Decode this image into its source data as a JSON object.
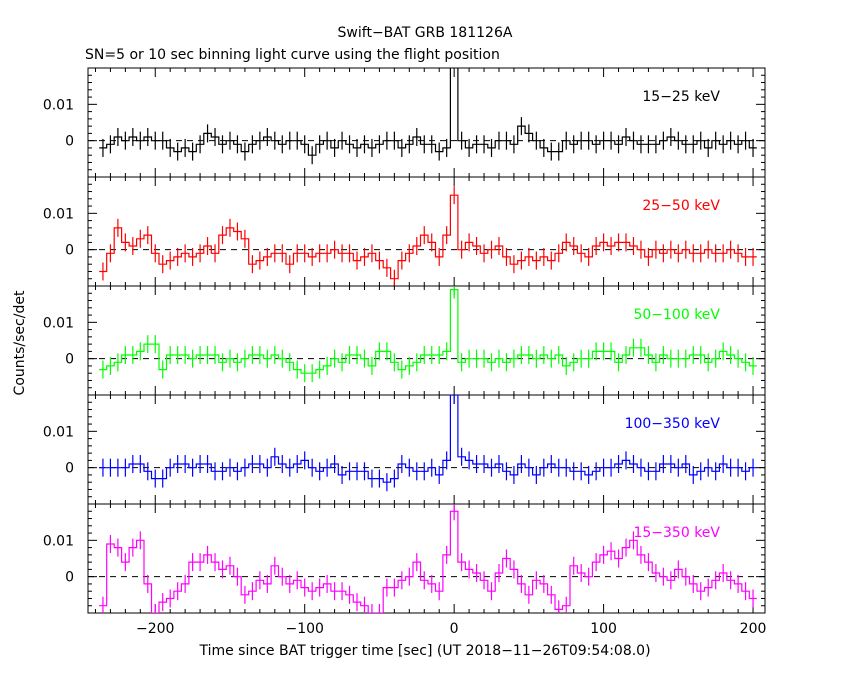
{
  "chart_data": {
    "type": "line",
    "title": "Swift−BAT GRB 181126A",
    "subtitle": "SN=5 or 10 sec binning light curve using the flight position",
    "xlabel": "Time since BAT trigger time [sec] (UT 2018−11−26T09:54:08.0)",
    "ylabel": "Counts/sec/det",
    "xlim": [
      -245,
      208
    ],
    "x_ticks": [
      -200,
      -100,
      0,
      100,
      200
    ],
    "x_tick_labels": [
      "−200",
      "−100",
      "0",
      "100",
      "200"
    ],
    "y_ticks": [
      0,
      0.01
    ],
    "y_tick_labels": [
      "0",
      "0.01"
    ],
    "ylim": [
      -0.01,
      0.02
    ],
    "grid": false,
    "zero_line": "dashed",
    "x": [
      -235,
      -230,
      -225,
      -220,
      -215,
      -210,
      -205,
      -200,
      -195,
      -190,
      -185,
      -180,
      -175,
      -170,
      -165,
      -160,
      -155,
      -150,
      -145,
      -140,
      -135,
      -130,
      -125,
      -120,
      -115,
      -110,
      -105,
      -100,
      -95,
      -90,
      -85,
      -80,
      -75,
      -70,
      -65,
      -60,
      -55,
      -50,
      -45,
      -40,
      -35,
      -30,
      -25,
      -20,
      -15,
      -10,
      -5,
      0,
      5,
      10,
      15,
      20,
      25,
      30,
      35,
      40,
      45,
      50,
      55,
      60,
      65,
      70,
      75,
      80,
      85,
      90,
      95,
      100,
      105,
      110,
      115,
      120,
      125,
      130,
      135,
      140,
      145,
      150,
      155,
      160,
      165,
      170,
      175,
      180,
      185,
      190,
      195,
      200
    ],
    "series": [
      {
        "name": "15−25 keV",
        "color": "#000000",
        "values": [
          -0.002,
          -0.001,
          0.001,
          0.0,
          0.001,
          0.0,
          0.001,
          0.0,
          0.0,
          -0.002,
          -0.003,
          -0.002,
          -0.003,
          -0.001,
          0.002,
          0.001,
          -0.001,
          0.0,
          -0.001,
          -0.003,
          -0.001,
          0.0,
          0.001,
          0.0,
          -0.001,
          0.0,
          0.0,
          -0.001,
          -0.004,
          -0.001,
          0.0,
          -0.002,
          0.0,
          -0.001,
          -0.002,
          -0.001,
          -0.002,
          -0.001,
          0.0,
          0.0,
          -0.002,
          -0.001,
          0.001,
          -0.001,
          -0.001,
          -0.003,
          -0.002,
          0.03,
          0.0,
          -0.002,
          -0.001,
          -0.001,
          -0.002,
          0.0,
          0.0,
          -0.001,
          0.004,
          0.002,
          0.0,
          -0.002,
          -0.003,
          -0.003,
          0.0,
          -0.001,
          0.0,
          0.0,
          -0.001,
          0.0,
          0.0,
          -0.001,
          0.001,
          0.0,
          -0.001,
          -0.001,
          -0.001,
          0.0,
          0.001,
          0.0,
          -0.001,
          -0.001,
          0.0,
          -0.002,
          0.0,
          -0.001,
          0.0,
          -0.001,
          0.0,
          -0.002
        ]
      },
      {
        "name": "25−50 keV",
        "color": "#ff0000",
        "values": [
          -0.006,
          -0.001,
          0.006,
          0.002,
          0.001,
          0.003,
          0.004,
          -0.001,
          -0.004,
          -0.003,
          -0.002,
          -0.001,
          -0.002,
          -0.001,
          0.001,
          -0.001,
          0.004,
          0.006,
          0.005,
          0.003,
          -0.004,
          -0.003,
          -0.002,
          -0.001,
          -0.001,
          -0.004,
          -0.001,
          -0.001,
          -0.002,
          -0.001,
          -0.001,
          0.0,
          -0.001,
          -0.001,
          -0.003,
          -0.002,
          -0.001,
          -0.003,
          -0.005,
          -0.008,
          -0.003,
          -0.001,
          0.001,
          0.004,
          0.002,
          -0.002,
          0.004,
          0.015,
          0.0,
          0.002,
          0.001,
          -0.001,
          0.0,
          0.001,
          -0.002,
          -0.004,
          -0.003,
          -0.002,
          -0.003,
          -0.002,
          -0.003,
          -0.001,
          0.002,
          0.001,
          -0.001,
          -0.002,
          0.001,
          0.002,
          0.001,
          0.002,
          0.002,
          0.001,
          0.0,
          -0.002,
          0.0,
          -0.001,
          0.0,
          -0.001,
          0.0,
          -0.001,
          -0.001,
          0.0,
          -0.001,
          -0.001,
          0.0,
          -0.001,
          -0.002,
          -0.002
        ]
      },
      {
        "name": "50−100 keV",
        "color": "#00ff00",
        "values": [
          -0.003,
          -0.002,
          -0.001,
          0.001,
          0.001,
          0.002,
          0.004,
          0.004,
          -0.003,
          0.001,
          0.001,
          0.001,
          0.0,
          0.001,
          0.001,
          0.001,
          -0.001,
          0.0,
          -0.001,
          0.0,
          0.001,
          0.001,
          0.0,
          0.001,
          0.0,
          -0.001,
          -0.003,
          -0.004,
          -0.004,
          -0.003,
          -0.002,
          0.0,
          -0.001,
          0.001,
          0.001,
          0.0,
          -0.002,
          0.002,
          0.002,
          -0.001,
          -0.003,
          -0.002,
          -0.001,
          0.001,
          0.001,
          0.001,
          0.002,
          0.019,
          -0.001,
          0.0,
          0.0,
          0.0,
          -0.001,
          0.0,
          -0.001,
          0.0,
          0.001,
          0.001,
          0.0,
          0.001,
          0.0,
          0.001,
          -0.002,
          -0.001,
          0.0,
          0.0,
          0.002,
          0.002,
          0.002,
          -0.001,
          0.001,
          0.003,
          0.003,
          0.001,
          -0.001,
          0.001,
          0.0,
          0.0,
          0.0,
          0.001,
          0.001,
          -0.001,
          0.0,
          0.002,
          0.001,
          0.0,
          -0.001,
          -0.002
        ]
      },
      {
        "name": "100−350 keV",
        "color": "#0000ff",
        "values": [
          0.0,
          0.0,
          0.0,
          0.0,
          0.001,
          0.001,
          -0.001,
          -0.003,
          -0.003,
          0.0,
          0.001,
          0.001,
          0.0,
          0.001,
          0.001,
          -0.001,
          -0.001,
          0.0,
          -0.001,
          0.0,
          0.001,
          0.001,
          0.0,
          0.003,
          0.001,
          0.0,
          0.001,
          0.002,
          0.0,
          -0.001,
          0.0,
          0.001,
          -0.002,
          -0.001,
          -0.001,
          -0.001,
          -0.003,
          -0.003,
          -0.004,
          -0.003,
          0.001,
          0.0,
          -0.001,
          -0.001,
          0.0,
          -0.002,
          0.002,
          0.02,
          0.003,
          0.002,
          0.001,
          0.001,
          0.0,
          0.001,
          -0.001,
          -0.002,
          0.001,
          0.0,
          -0.002,
          0.0,
          0.001,
          0.0,
          0.0,
          -0.001,
          -0.001,
          -0.002,
          -0.001,
          0.0,
          0.0,
          0.001,
          0.002,
          0.001,
          0.0,
          -0.001,
          -0.001,
          0.001,
          0.001,
          0.0,
          0.001,
          -0.002,
          -0.001,
          0.0,
          -0.001,
          0.001,
          0.0,
          0.0,
          -0.001,
          0.0
        ]
      },
      {
        "name": "15−350 keV",
        "color": "#ff00ff",
        "values": [
          -0.008,
          0.009,
          0.008,
          0.004,
          0.008,
          0.01,
          -0.002,
          -0.01,
          -0.007,
          -0.006,
          -0.004,
          -0.002,
          0.004,
          0.004,
          0.006,
          0.004,
          0.002,
          0.003,
          0.0,
          -0.005,
          -0.004,
          -0.001,
          -0.002,
          0.003,
          0.0,
          -0.002,
          -0.001,
          -0.003,
          -0.004,
          -0.003,
          -0.002,
          -0.004,
          -0.004,
          -0.005,
          -0.007,
          -0.008,
          -0.01,
          -0.01,
          -0.003,
          -0.003,
          -0.001,
          0.0,
          0.004,
          -0.001,
          -0.002,
          -0.004,
          0.006,
          0.018,
          0.004,
          0.002,
          0.001,
          -0.001,
          -0.004,
          0.001,
          0.005,
          0.002,
          -0.002,
          -0.005,
          -0.001,
          -0.002,
          -0.005,
          -0.009,
          -0.008,
          0.003,
          0.001,
          0.0,
          0.004,
          0.006,
          0.007,
          0.005,
          0.008,
          0.01,
          0.006,
          0.004,
          0.001,
          0.0,
          -0.001,
          0.002,
          0.0,
          -0.002,
          -0.004,
          -0.003,
          -0.001,
          0.001,
          -0.001,
          -0.002,
          -0.004,
          -0.006
        ]
      }
    ]
  }
}
